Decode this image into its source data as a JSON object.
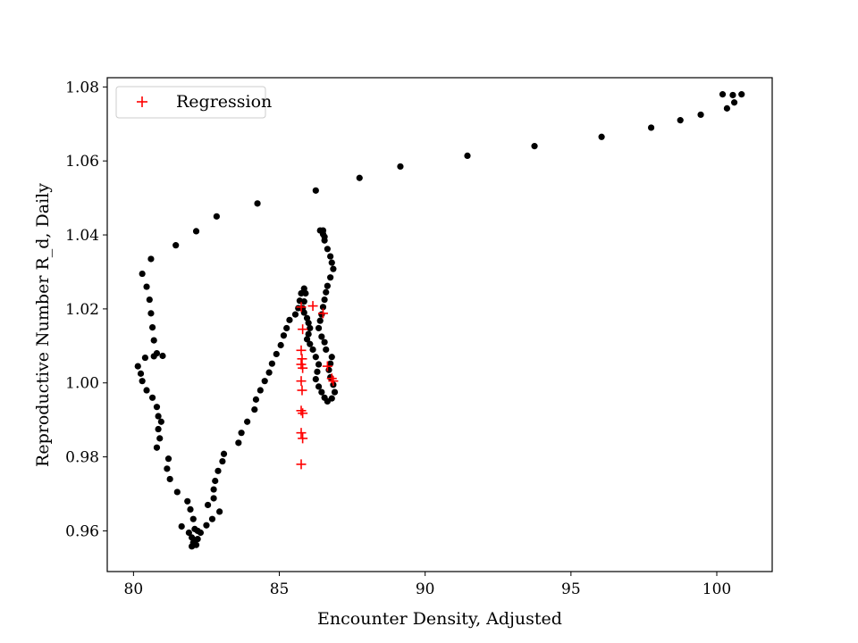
{
  "chart_data": {
    "type": "scatter",
    "title": "",
    "xlabel": "Encounter Density, Adjusted",
    "ylabel": "Reproductive Number R_d, Daily",
    "xlim": [
      79.1,
      101.9
    ],
    "ylim": [
      0.949,
      1.0825
    ],
    "xticks": [
      80,
      85,
      90,
      95,
      100
    ],
    "yticks": [
      0.96,
      0.98,
      1.0,
      1.02,
      1.04,
      1.06,
      1.08
    ],
    "xtick_labels": [
      "80",
      "85",
      "90",
      "95",
      "100"
    ],
    "ytick_labels": [
      "0.96",
      "0.98",
      "1.00",
      "1.02",
      "1.04",
      "1.06",
      "1.08"
    ],
    "grid": false,
    "legend_position": "upper-left",
    "colors": {
      "points": "#000000",
      "regression": "#ff0000"
    },
    "series": [
      {
        "marker": "dot",
        "color": "#000000",
        "points": [
          [
            100.2,
            1.078
          ],
          [
            100.55,
            1.0778
          ],
          [
            100.85,
            1.078
          ],
          [
            100.6,
            1.0758
          ],
          [
            100.35,
            1.0742
          ],
          [
            99.45,
            1.0725
          ],
          [
            98.75,
            1.071
          ],
          [
            97.75,
            1.069
          ],
          [
            96.05,
            1.0665
          ],
          [
            93.75,
            1.064
          ],
          [
            91.45,
            1.0614
          ],
          [
            89.15,
            1.0585
          ],
          [
            87.75,
            1.0554
          ],
          [
            86.25,
            1.052
          ],
          [
            84.25,
            1.0485
          ],
          [
            82.85,
            1.045
          ],
          [
            82.15,
            1.041
          ],
          [
            81.45,
            1.0372
          ],
          [
            80.6,
            1.0335
          ],
          [
            80.3,
            1.0295
          ],
          [
            80.45,
            1.026
          ],
          [
            80.55,
            1.0225
          ],
          [
            80.6,
            1.0188
          ],
          [
            80.65,
            1.015
          ],
          [
            80.7,
            1.0115
          ],
          [
            80.8,
            1.008
          ],
          [
            81.0,
            1.0073
          ],
          [
            80.7,
            1.0072
          ],
          [
            80.4,
            1.0068
          ],
          [
            80.15,
            1.0045
          ],
          [
            80.25,
            1.0025
          ],
          [
            80.3,
            1.0005
          ],
          [
            80.45,
            0.998
          ],
          [
            80.65,
            0.996
          ],
          [
            80.8,
            0.9935
          ],
          [
            80.85,
            0.991
          ],
          [
            80.95,
            0.9895
          ],
          [
            80.85,
            0.9875
          ],
          [
            80.9,
            0.985
          ],
          [
            80.8,
            0.9825
          ],
          [
            81.2,
            0.9795
          ],
          [
            81.15,
            0.9768
          ],
          [
            81.25,
            0.974
          ],
          [
            81.5,
            0.9705
          ],
          [
            81.85,
            0.968
          ],
          [
            81.95,
            0.9658
          ],
          [
            82.05,
            0.9632
          ],
          [
            81.65,
            0.9612
          ],
          [
            81.9,
            0.9595
          ],
          [
            82.0,
            0.9582
          ],
          [
            82.1,
            0.9575
          ],
          [
            82.05,
            0.9568
          ],
          [
            82.0,
            0.9558
          ],
          [
            82.15,
            0.9562
          ],
          [
            82.2,
            0.9578
          ],
          [
            82.3,
            0.9595
          ],
          [
            82.1,
            0.9605
          ],
          [
            82.2,
            0.96
          ],
          [
            82.5,
            0.9615
          ],
          [
            82.7,
            0.9632
          ],
          [
            82.55,
            0.967
          ],
          [
            82.75,
            0.9688
          ],
          [
            82.75,
            0.9712
          ],
          [
            82.8,
            0.9735
          ],
          [
            82.9,
            0.9762
          ],
          [
            83.05,
            0.9788
          ],
          [
            83.1,
            0.9808
          ],
          [
            82.95,
            0.9652
          ],
          [
            83.6,
            0.9838
          ],
          [
            83.7,
            0.9865
          ],
          [
            83.9,
            0.9895
          ],
          [
            84.15,
            0.9928
          ],
          [
            84.2,
            0.9955
          ],
          [
            84.35,
            0.998
          ],
          [
            84.5,
            1.0005
          ],
          [
            84.65,
            1.0028
          ],
          [
            84.75,
            1.0052
          ],
          [
            84.9,
            1.0078
          ],
          [
            85.05,
            1.0102
          ],
          [
            85.15,
            1.0128
          ],
          [
            85.25,
            1.0148
          ],
          [
            85.35,
            1.017
          ],
          [
            85.55,
            1.0185
          ],
          [
            85.65,
            1.0202
          ],
          [
            85.7,
            1.0222
          ],
          [
            85.75,
            1.0242
          ],
          [
            85.85,
            1.0255
          ],
          [
            85.9,
            1.0242
          ],
          [
            85.85,
            1.022
          ],
          [
            85.8,
            1.0202
          ],
          [
            85.85,
            1.019
          ],
          [
            85.95,
            1.0175
          ],
          [
            86.0,
            1.0162
          ],
          [
            86.05,
            1.0148
          ],
          [
            86.0,
            1.0132
          ],
          [
            85.95,
            1.0118
          ],
          [
            86.05,
            1.0105
          ],
          [
            86.15,
            1.009
          ],
          [
            86.25,
            1.007
          ],
          [
            86.35,
            1.005
          ],
          [
            86.3,
            1.003
          ],
          [
            86.25,
            1.001
          ],
          [
            86.35,
            0.999
          ],
          [
            86.45,
            0.9975
          ],
          [
            86.55,
            0.996
          ],
          [
            86.65,
            0.995
          ],
          [
            86.8,
            0.9958
          ],
          [
            86.9,
            0.9975
          ],
          [
            86.85,
            0.9995
          ],
          [
            86.75,
            1.0015
          ],
          [
            86.7,
            1.0035
          ],
          [
            86.75,
            1.0052
          ],
          [
            86.8,
            1.007
          ],
          [
            86.6,
            1.009
          ],
          [
            86.55,
            1.011
          ],
          [
            86.45,
            1.0125
          ],
          [
            86.35,
            1.0148
          ],
          [
            86.4,
            1.0168
          ],
          [
            86.45,
            1.0185
          ],
          [
            86.5,
            1.0205
          ],
          [
            86.55,
            1.0225
          ],
          [
            86.6,
            1.0245
          ],
          [
            86.65,
            1.0262
          ],
          [
            86.75,
            1.0285
          ],
          [
            86.85,
            1.0308
          ],
          [
            86.8,
            1.0325
          ],
          [
            86.75,
            1.0342
          ],
          [
            86.65,
            1.0362
          ],
          [
            86.55,
            1.0385
          ],
          [
            86.5,
            1.0402
          ],
          [
            86.4,
            1.0412
          ],
          [
            86.5,
            1.0412
          ],
          [
            86.55,
            1.0395
          ]
        ]
      },
      {
        "name": "Regression",
        "marker": "plus",
        "color": "#ff0000",
        "points": [
          [
            85.75,
            1.0205
          ],
          [
            85.8,
            1.0145
          ],
          [
            85.75,
            1.0088
          ],
          [
            85.78,
            1.0065
          ],
          [
            85.75,
            1.005
          ],
          [
            85.8,
            1.004
          ],
          [
            85.75,
            1.0005
          ],
          [
            85.78,
            0.998
          ],
          [
            85.75,
            0.9925
          ],
          [
            85.8,
            0.9918
          ],
          [
            85.75,
            0.9865
          ],
          [
            85.8,
            0.985
          ],
          [
            85.75,
            0.978
          ],
          [
            86.15,
            1.0208
          ],
          [
            86.5,
            1.0188
          ],
          [
            86.65,
            1.0045
          ],
          [
            86.8,
            1.0012
          ],
          [
            86.85,
            1.0005
          ]
        ]
      }
    ]
  }
}
